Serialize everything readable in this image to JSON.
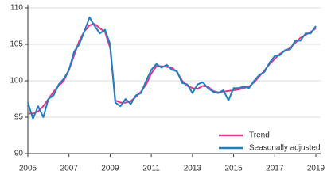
{
  "chart_data": {
    "type": "line",
    "x": [
      2005,
      2005.25,
      2005.5,
      2005.75,
      2006,
      2006.25,
      2006.5,
      2006.75,
      2007,
      2007.25,
      2007.5,
      2007.75,
      2008,
      2008.25,
      2008.5,
      2008.75,
      2009,
      2009.25,
      2009.5,
      2009.75,
      2010,
      2010.25,
      2010.5,
      2010.75,
      2011,
      2011.25,
      2011.5,
      2011.75,
      2012,
      2012.25,
      2012.5,
      2012.75,
      2013,
      2013.25,
      2013.5,
      2013.75,
      2014,
      2014.25,
      2014.5,
      2014.75,
      2015,
      2015.25,
      2015.5,
      2015.75,
      2016,
      2016.25,
      2016.5,
      2016.75,
      2017,
      2017.25,
      2017.5,
      2017.75,
      2018,
      2018.25,
      2018.5,
      2018.75,
      2019
    ],
    "series": [
      {
        "name": "Trend",
        "color": "#e5358a",
        "values": [
          95.5,
          95.5,
          95.8,
          96.5,
          97.5,
          98.5,
          99.3,
          100.0,
          101.5,
          103.5,
          105.5,
          106.8,
          107.6,
          107.8,
          107.2,
          106.7,
          104.5,
          97.3,
          97.0,
          97.0,
          97.2,
          97.8,
          98.5,
          99.5,
          101.0,
          102.0,
          102.0,
          101.9,
          101.8,
          101.2,
          100.0,
          99.3,
          99.0,
          98.9,
          99.3,
          99.2,
          98.6,
          98.4,
          98.5,
          98.6,
          98.7,
          98.8,
          99.0,
          99.2,
          99.8,
          100.6,
          101.4,
          102.3,
          103.0,
          103.7,
          104.1,
          104.5,
          105.2,
          105.9,
          106.3,
          106.7,
          107.2
        ]
      },
      {
        "name": "Seasonally adjusted",
        "color": "#1f7fc0",
        "values": [
          97.0,
          94.8,
          96.5,
          95.0,
          97.5,
          98.0,
          99.5,
          100.3,
          101.5,
          104.0,
          105.0,
          106.8,
          108.7,
          107.5,
          106.5,
          107.0,
          105.0,
          97.0,
          96.5,
          97.5,
          96.8,
          98.0,
          98.3,
          100.0,
          101.5,
          102.3,
          101.8,
          102.2,
          101.5,
          101.3,
          99.7,
          99.5,
          98.3,
          99.5,
          99.8,
          99.0,
          98.5,
          98.3,
          98.7,
          97.3,
          99.0,
          99.0,
          99.2,
          99.0,
          100.0,
          100.8,
          101.2,
          102.5,
          103.4,
          103.5,
          104.2,
          104.3,
          105.5,
          105.5,
          106.5,
          106.5,
          107.5
        ]
      }
    ],
    "xlim": [
      2005,
      2019
    ],
    "xticks": [
      2005,
      2007,
      2009,
      2011,
      2013,
      2015,
      2017,
      2019
    ],
    "ylim": [
      90,
      110
    ],
    "yticks": [
      90,
      95,
      100,
      105,
      110
    ],
    "grid": true,
    "legend": "lower right"
  }
}
